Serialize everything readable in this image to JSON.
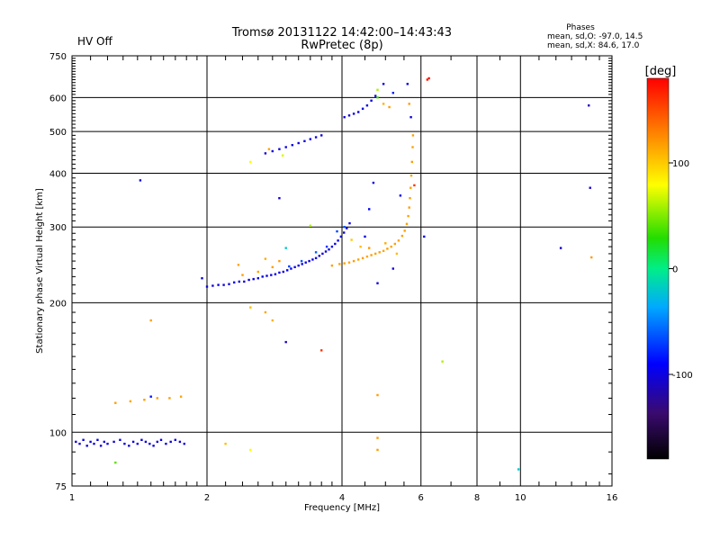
{
  "status": {
    "hv_text": "HV Off",
    "hv_color": "#cc0000"
  },
  "chart_data": {
    "type": "scatter",
    "title": "Tromsø 20131122 14:42:00–14:43:43",
    "subtitle": "RwPretec (8p)",
    "xlabel": "Frequency [MHz]",
    "ylabel": "Stationary phase Virtual Height [km]",
    "x_scale": "log",
    "y_scale": "log",
    "xlim": [
      1,
      16
    ],
    "ylim": [
      75,
      750
    ],
    "xticks": [
      1,
      2,
      4,
      6,
      8,
      10,
      16
    ],
    "yticks": [
      75,
      100,
      200,
      300,
      400,
      500,
      600,
      750
    ],
    "grid": true,
    "phases_box": {
      "title": "Phases",
      "line1": "mean, sd,O: -97.0, 14.5",
      "line2": "mean, sd,X:  84.6, 17.0"
    },
    "colorbar": {
      "label": "[deg]",
      "range": [
        -180,
        180
      ],
      "ticks": [
        100,
        0,
        -100
      ]
    },
    "points": [
      [
        1.02,
        95,
        -100
      ],
      [
        1.04,
        94,
        -102
      ],
      [
        1.06,
        96,
        -98
      ],
      [
        1.08,
        93,
        -101
      ],
      [
        1.1,
        95,
        -99
      ],
      [
        1.12,
        94,
        -100
      ],
      [
        1.14,
        96,
        -97
      ],
      [
        1.16,
        93,
        -103
      ],
      [
        1.18,
        95,
        -100
      ],
      [
        1.2,
        94,
        -99
      ],
      [
        1.24,
        95,
        -101
      ],
      [
        1.28,
        96,
        -98
      ],
      [
        1.31,
        94,
        -100
      ],
      [
        1.34,
        93,
        -102
      ],
      [
        1.37,
        95,
        -99
      ],
      [
        1.4,
        94,
        -100
      ],
      [
        1.43,
        96,
        -101
      ],
      [
        1.46,
        95,
        -98
      ],
      [
        1.49,
        94,
        -100
      ],
      [
        1.52,
        93,
        -99
      ],
      [
        1.55,
        95,
        -102
      ],
      [
        1.58,
        96,
        -100
      ],
      [
        1.62,
        94,
        -99
      ],
      [
        1.66,
        95,
        -101
      ],
      [
        1.7,
        96,
        -98
      ],
      [
        1.74,
        95,
        -100
      ],
      [
        1.78,
        94,
        -99
      ],
      [
        1.25,
        117,
        118
      ],
      [
        1.35,
        118,
        115
      ],
      [
        1.45,
        119,
        117
      ],
      [
        1.55,
        120,
        116
      ],
      [
        1.65,
        120,
        118
      ],
      [
        1.75,
        121,
        115
      ],
      [
        1.5,
        121,
        -85
      ],
      [
        1.25,
        85,
        40
      ],
      [
        2.2,
        94,
        105
      ],
      [
        2.5,
        91,
        80
      ],
      [
        1.5,
        182,
        116
      ],
      [
        1.42,
        385,
        -105
      ],
      [
        1.95,
        228,
        -100
      ],
      [
        2.0,
        218,
        -102
      ],
      [
        2.06,
        219,
        -98
      ],
      [
        2.12,
        220,
        -100
      ],
      [
        2.18,
        220,
        -101
      ],
      [
        2.24,
        221,
        -99
      ],
      [
        2.3,
        223,
        -100
      ],
      [
        2.36,
        224,
        -97
      ],
      [
        2.42,
        224,
        -103
      ],
      [
        2.48,
        226,
        -100
      ],
      [
        2.54,
        227,
        -99
      ],
      [
        2.6,
        228,
        -101
      ],
      [
        2.66,
        230,
        -98
      ],
      [
        2.72,
        231,
        -100
      ],
      [
        2.78,
        232,
        -102
      ],
      [
        2.84,
        233,
        -99
      ],
      [
        2.9,
        235,
        -100
      ],
      [
        2.96,
        236,
        -101
      ],
      [
        3.02,
        238,
        -98
      ],
      [
        3.08,
        240,
        -100
      ],
      [
        3.14,
        242,
        -99
      ],
      [
        3.2,
        244,
        -102
      ],
      [
        3.26,
        246,
        -100
      ],
      [
        3.32,
        248,
        -98
      ],
      [
        3.38,
        250,
        -101
      ],
      [
        3.44,
        252,
        -100
      ],
      [
        3.5,
        254,
        -99
      ],
      [
        3.56,
        257,
        -100
      ],
      [
        3.62,
        260,
        -102
      ],
      [
        3.68,
        263,
        -99
      ],
      [
        3.74,
        266,
        -100
      ],
      [
        3.8,
        270,
        -101
      ],
      [
        3.86,
        274,
        -98
      ],
      [
        3.92,
        279,
        -100
      ],
      [
        3.98,
        285,
        -99
      ],
      [
        4.04,
        291,
        -101
      ],
      [
        4.1,
        298,
        -100
      ],
      [
        4.16,
        306,
        -98
      ],
      [
        3.05,
        243,
        -70
      ],
      [
        3.25,
        250,
        -65
      ],
      [
        3.5,
        262,
        -60
      ],
      [
        3.7,
        270,
        -72
      ],
      [
        3.9,
        293,
        -68
      ],
      [
        4.05,
        300,
        -62
      ],
      [
        2.4,
        232,
        118
      ],
      [
        2.6,
        236,
        116
      ],
      [
        2.8,
        242,
        117
      ],
      [
        2.35,
        245,
        114
      ],
      [
        2.7,
        253,
        112
      ],
      [
        2.9,
        250,
        119
      ],
      [
        3.8,
        244,
        118
      ],
      [
        3.95,
        246,
        116
      ],
      [
        4.05,
        247,
        117
      ],
      [
        4.15,
        248,
        115
      ],
      [
        4.25,
        250,
        118
      ],
      [
        4.35,
        252,
        116
      ],
      [
        4.45,
        254,
        117
      ],
      [
        4.55,
        256,
        115
      ],
      [
        4.65,
        258,
        118
      ],
      [
        4.75,
        260,
        116
      ],
      [
        4.85,
        262,
        117
      ],
      [
        4.95,
        264,
        115
      ],
      [
        5.05,
        267,
        118
      ],
      [
        5.15,
        270,
        116
      ],
      [
        5.25,
        274,
        117
      ],
      [
        5.35,
        279,
        115
      ],
      [
        5.45,
        286,
        118
      ],
      [
        5.52,
        294,
        116
      ],
      [
        5.58,
        305,
        117
      ],
      [
        5.62,
        318,
        115
      ],
      [
        5.65,
        333,
        118
      ],
      [
        5.67,
        350,
        116
      ],
      [
        5.69,
        370,
        117
      ],
      [
        5.71,
        395,
        115
      ],
      [
        5.73,
        425,
        118
      ],
      [
        5.75,
        460,
        116
      ],
      [
        5.76,
        490,
        117
      ],
      [
        4.2,
        280,
        100
      ],
      [
        4.4,
        270,
        105
      ],
      [
        4.6,
        268,
        120
      ],
      [
        5.0,
        275,
        112
      ],
      [
        5.3,
        260,
        106
      ],
      [
        2.7,
        445,
        -105
      ],
      [
        2.8,
        450,
        -100
      ],
      [
        2.9,
        455,
        -102
      ],
      [
        3.0,
        460,
        -99
      ],
      [
        3.1,
        465,
        -101
      ],
      [
        3.2,
        470,
        -100
      ],
      [
        3.3,
        475,
        -98
      ],
      [
        3.4,
        480,
        -100
      ],
      [
        3.5,
        485,
        -101
      ],
      [
        3.6,
        490,
        -99
      ],
      [
        2.75,
        455,
        115
      ],
      [
        2.95,
        440,
        70
      ],
      [
        2.5,
        425,
        80
      ],
      [
        4.05,
        540,
        -100
      ],
      [
        4.15,
        545,
        -102
      ],
      [
        4.25,
        550,
        -99
      ],
      [
        4.35,
        555,
        -100
      ],
      [
        4.45,
        565,
        -101
      ],
      [
        4.55,
        575,
        -98
      ],
      [
        4.65,
        590,
        -100
      ],
      [
        4.75,
        605,
        -101
      ],
      [
        4.8,
        600,
        40
      ],
      [
        4.95,
        580,
        110
      ],
      [
        5.1,
        570,
        118
      ],
      [
        4.8,
        625,
        60
      ],
      [
        4.95,
        645,
        -100
      ],
      [
        5.2,
        615,
        -80
      ],
      [
        5.6,
        645,
        -100
      ],
      [
        5.65,
        580,
        118
      ],
      [
        5.7,
        540,
        -100
      ],
      [
        6.2,
        660,
        170
      ],
      [
        6.25,
        665,
        175
      ],
      [
        5.8,
        375,
        160
      ],
      [
        6.1,
        285,
        -100
      ],
      [
        4.7,
        380,
        -100
      ],
      [
        5.4,
        355,
        -95
      ],
      [
        4.6,
        330,
        -90
      ],
      [
        4.5,
        285,
        -100
      ],
      [
        4.8,
        222,
        -102
      ],
      [
        5.2,
        240,
        -101
      ],
      [
        3.4,
        302,
        60
      ],
      [
        3.0,
        268,
        -20
      ],
      [
        2.9,
        350,
        -105
      ],
      [
        2.8,
        182,
        110
      ],
      [
        2.7,
        190,
        115
      ],
      [
        2.5,
        195,
        105
      ],
      [
        3.0,
        162,
        -110
      ],
      [
        3.6,
        155,
        160
      ],
      [
        4.8,
        122,
        118
      ],
      [
        4.8,
        97,
        118
      ],
      [
        4.8,
        91,
        118
      ],
      [
        6.7,
        146,
        60
      ],
      [
        9.9,
        82,
        -20
      ],
      [
        12.3,
        268,
        -105
      ],
      [
        14.2,
        575,
        -110
      ],
      [
        14.3,
        370,
        -105
      ],
      [
        14.4,
        255,
        118
      ]
    ]
  }
}
